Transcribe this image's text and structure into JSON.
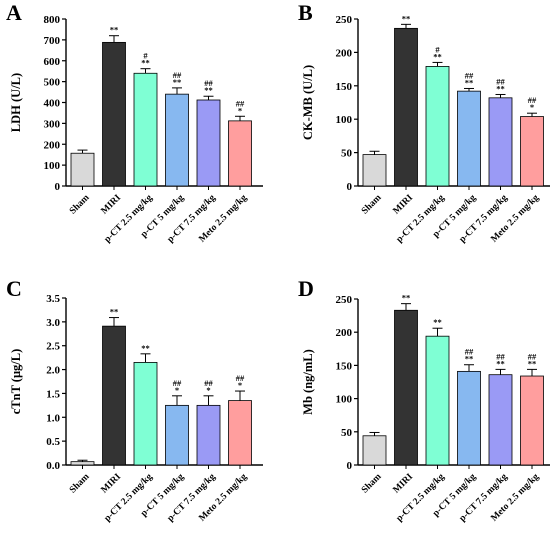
{
  "chart_data": [
    {
      "type": "bar",
      "panel": "A",
      "ylabel": "LDH (U/L)",
      "ylim": [
        0,
        800
      ],
      "yticks": [
        0,
        100,
        200,
        300,
        400,
        500,
        600,
        700,
        800
      ],
      "categories": [
        "Sham",
        "MIRI",
        "p-CT 2.5 mg/kg",
        "p-CT 5 mg/kg",
        "p-CT 7.5 mg/kg",
        "Meto 2.5 mg/kg"
      ],
      "values": [
        157,
        688,
        540,
        440,
        412,
        312
      ],
      "errors": [
        15,
        32,
        22,
        30,
        18,
        22
      ],
      "annotations": [
        [],
        [
          "**"
        ],
        [
          "#",
          "**"
        ],
        [
          "##",
          "**"
        ],
        [
          "##",
          "**"
        ],
        [
          "##",
          "*"
        ]
      ],
      "colors": [
        "#d9d9d9",
        "#333333",
        "#7fffd4",
        "#87b8f0",
        "#9a9af5",
        "#ff9e9e"
      ]
    },
    {
      "type": "bar",
      "panel": "B",
      "ylabel": "CK-MB (U/L)",
      "ylim": [
        0,
        250
      ],
      "yticks": [
        0,
        50,
        100,
        150,
        200,
        250
      ],
      "categories": [
        "Sham",
        "MIRI",
        "p-CT 2.5 mg/kg",
        "p-CT 5 mg/kg",
        "p-CT 7.5 mg/kg",
        "Meto 2.5 mg/kg"
      ],
      "values": [
        47,
        236,
        179,
        142,
        132,
        104
      ],
      "errors": [
        5,
        6,
        6,
        4,
        5,
        5
      ],
      "annotations": [
        [],
        [
          "**"
        ],
        [
          "#",
          "**"
        ],
        [
          "##",
          "**"
        ],
        [
          "##",
          "**"
        ],
        [
          "##",
          "*"
        ]
      ],
      "colors": [
        "#d9d9d9",
        "#333333",
        "#7fffd4",
        "#87b8f0",
        "#9a9af5",
        "#ff9e9e"
      ]
    },
    {
      "type": "bar",
      "panel": "C",
      "ylabel": "cTnT (μg/L)",
      "ylim": [
        0,
        3.5
      ],
      "yticks": [
        "0.0",
        "0.5",
        "1.0",
        "1.5",
        "2.0",
        "2.5",
        "3.0",
        "3.5"
      ],
      "categories": [
        "Sham",
        "MIRI",
        "p-CT 2.5 mg/kg",
        "p-CT 5 mg/kg",
        "p-CT 7.5 mg/kg",
        "Meto 2.5 mg/kg"
      ],
      "values": [
        0.07,
        2.91,
        2.15,
        1.25,
        1.25,
        1.35
      ],
      "errors": [
        0.03,
        0.18,
        0.18,
        0.2,
        0.2,
        0.2
      ],
      "annotations": [
        [],
        [
          "**"
        ],
        [
          "**"
        ],
        [
          "##",
          "*"
        ],
        [
          "##",
          "*"
        ],
        [
          "##",
          "*"
        ]
      ],
      "colors": [
        "#d9d9d9",
        "#333333",
        "#7fffd4",
        "#87b8f0",
        "#9a9af5",
        "#ff9e9e"
      ]
    },
    {
      "type": "bar",
      "panel": "D",
      "ylabel": "Mb (ng/mL)",
      "ylim": [
        0,
        250
      ],
      "yticks": [
        0,
        50,
        100,
        150,
        200,
        250
      ],
      "categories": [
        "Sham",
        "MIRI",
        "p-CT 2.5 mg/kg",
        "p-CT 5 mg/kg",
        "p-CT 7.5 mg/kg",
        "Meto 2.5 mg/kg"
      ],
      "values": [
        44,
        233,
        194,
        141,
        136,
        134
      ],
      "errors": [
        5,
        10,
        12,
        10,
        8,
        10
      ],
      "annotations": [
        [],
        [
          "**"
        ],
        [
          "**"
        ],
        [
          "##",
          "**"
        ],
        [
          "##",
          "**"
        ],
        [
          "##",
          "**"
        ]
      ],
      "colors": [
        "#d9d9d9",
        "#333333",
        "#7fffd4",
        "#87b8f0",
        "#9a9af5",
        "#ff9e9e"
      ]
    }
  ]
}
